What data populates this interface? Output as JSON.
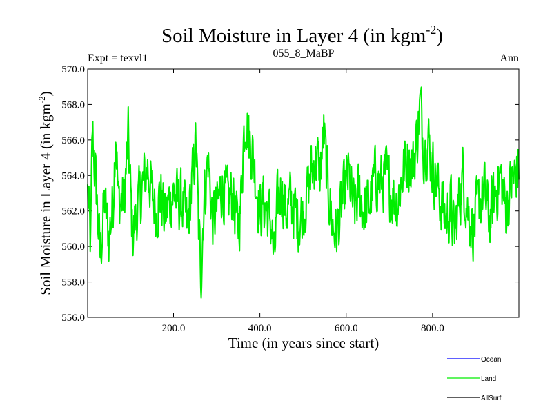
{
  "chart_data": {
    "type": "line",
    "title": "Soil Moisture in Layer 4 (in kgm",
    "title_sup": "-2",
    "title_close": ")",
    "subtitle_left": "Expt = texvl1",
    "subtitle_center": "055_8_MaBP",
    "subtitle_right": "Ann",
    "xlabel": "Time (in years since start)",
    "ylabel": "Soil Moisture in Layer 4 (in kgm",
    "ylabel_sup": "-2",
    "ylabel_close": ")",
    "xlim": [
      1,
      1000
    ],
    "ylim": [
      556.0,
      570.0
    ],
    "x_ticks": [
      200,
      400,
      600,
      800
    ],
    "x_tick_labels": [
      "200.0",
      "400.0",
      "600.0",
      "800.0"
    ],
    "y_ticks": [
      556,
      558,
      560,
      562,
      564,
      566,
      568,
      570
    ],
    "y_tick_labels": [
      "556.0",
      "558.0",
      "560.0",
      "562.0",
      "564.0",
      "566.0",
      "568.0",
      "570.0"
    ],
    "legend": [
      {
        "name": "Ocean",
        "color": "#0000ff"
      },
      {
        "name": "Land",
        "color": "#00ee00"
      },
      {
        "name": "AllSurf",
        "color": "#000000"
      }
    ],
    "series": [
      {
        "name": "Land",
        "color": "#00ee00",
        "x_start": 1,
        "x_step": 1,
        "anchors": [
          [
            1,
            563.0
          ],
          [
            8,
            560.0
          ],
          [
            12,
            566.5
          ],
          [
            20,
            563.5
          ],
          [
            30,
            559.5
          ],
          [
            40,
            562.5
          ],
          [
            50,
            560.5
          ],
          [
            60,
            562.5
          ],
          [
            66,
            567.0
          ],
          [
            72,
            562.5
          ],
          [
            85,
            562.5
          ],
          [
            95,
            566.0
          ],
          [
            105,
            560.5
          ],
          [
            115,
            562.0
          ],
          [
            125,
            563.0
          ],
          [
            140,
            564.5
          ],
          [
            150,
            563.0
          ],
          [
            160,
            562.0
          ],
          [
            170,
            563.0
          ],
          [
            180,
            561.5
          ],
          [
            190,
            562.5
          ],
          [
            200,
            563.0
          ],
          [
            210,
            562.5
          ],
          [
            220,
            562.5
          ],
          [
            232,
            561.0
          ],
          [
            245,
            564.0
          ],
          [
            252,
            566.0
          ],
          [
            258,
            561.0
          ],
          [
            264,
            558.5
          ],
          [
            270,
            562.5
          ],
          [
            280,
            565.0
          ],
          [
            290,
            561.5
          ],
          [
            300,
            562.0
          ],
          [
            312,
            563.5
          ],
          [
            325,
            562.5
          ],
          [
            338,
            563.0
          ],
          [
            348,
            561.0
          ],
          [
            355,
            562.0
          ],
          [
            362,
            566.0
          ],
          [
            368,
            567.5
          ],
          [
            375,
            566.0
          ],
          [
            385,
            565.0
          ],
          [
            392,
            563.5
          ],
          [
            400,
            562.0
          ],
          [
            408,
            562.5
          ],
          [
            418,
            562.0
          ],
          [
            428,
            561.0
          ],
          [
            433,
            559.0
          ],
          [
            440,
            562.0
          ],
          [
            450,
            563.5
          ],
          [
            460,
            562.0
          ],
          [
            470,
            562.5
          ],
          [
            480,
            562.0
          ],
          [
            490,
            561.5
          ],
          [
            500,
            562.0
          ],
          [
            510,
            563.0
          ],
          [
            522,
            564.5
          ],
          [
            532,
            565.0
          ],
          [
            540,
            564.0
          ],
          [
            548,
            566.5
          ],
          [
            555,
            564.0
          ],
          [
            562,
            562.5
          ],
          [
            570,
            561.0
          ],
          [
            580,
            561.0
          ],
          [
            592,
            562.5
          ],
          [
            605,
            564.0
          ],
          [
            618,
            562.0
          ],
          [
            630,
            563.0
          ],
          [
            642,
            562.0
          ],
          [
            655,
            562.5
          ],
          [
            668,
            564.0
          ],
          [
            680,
            563.5
          ],
          [
            692,
            564.0
          ],
          [
            705,
            563.0
          ],
          [
            718,
            562.5
          ],
          [
            730,
            564.0
          ],
          [
            742,
            565.0
          ],
          [
            755,
            564.5
          ],
          [
            763,
            566.0
          ],
          [
            772,
            568.0
          ],
          [
            780,
            565.5
          ],
          [
            790,
            566.0
          ],
          [
            800,
            564.5
          ],
          [
            810,
            563.5
          ],
          [
            820,
            562.5
          ],
          [
            832,
            561.5
          ],
          [
            842,
            562.5
          ],
          [
            850,
            560.5
          ],
          [
            858,
            562.0
          ],
          [
            870,
            564.0
          ],
          [
            882,
            562.0
          ],
          [
            895,
            561.0
          ],
          [
            908,
            562.5
          ],
          [
            920,
            563.0
          ],
          [
            932,
            561.5
          ],
          [
            945,
            563.0
          ],
          [
            958,
            564.0
          ],
          [
            970,
            562.0
          ],
          [
            982,
            563.5
          ],
          [
            992,
            564.0
          ],
          [
            1000,
            564.5
          ]
        ],
        "y_min": 557.1,
        "y_max": 569.6
      }
    ]
  }
}
